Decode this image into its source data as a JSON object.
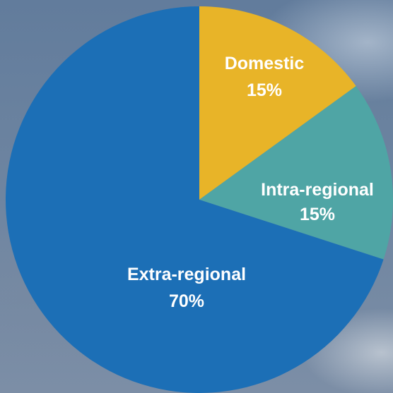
{
  "chart_data": {
    "type": "pie",
    "title": "",
    "slices": [
      {
        "label": "Domestic",
        "value": 15,
        "value_label": "15%",
        "color": "#e8b428"
      },
      {
        "label": "Intra-regional",
        "value": 15,
        "value_label": "15%",
        "color": "#4fa5a5"
      },
      {
        "label": "Extra-regional",
        "value": 70,
        "value_label": "70%",
        "color": "#1c6fb6"
      }
    ],
    "start_angle_deg": 0,
    "direction": "clockwise",
    "legend": "none",
    "labels_inside": true
  }
}
